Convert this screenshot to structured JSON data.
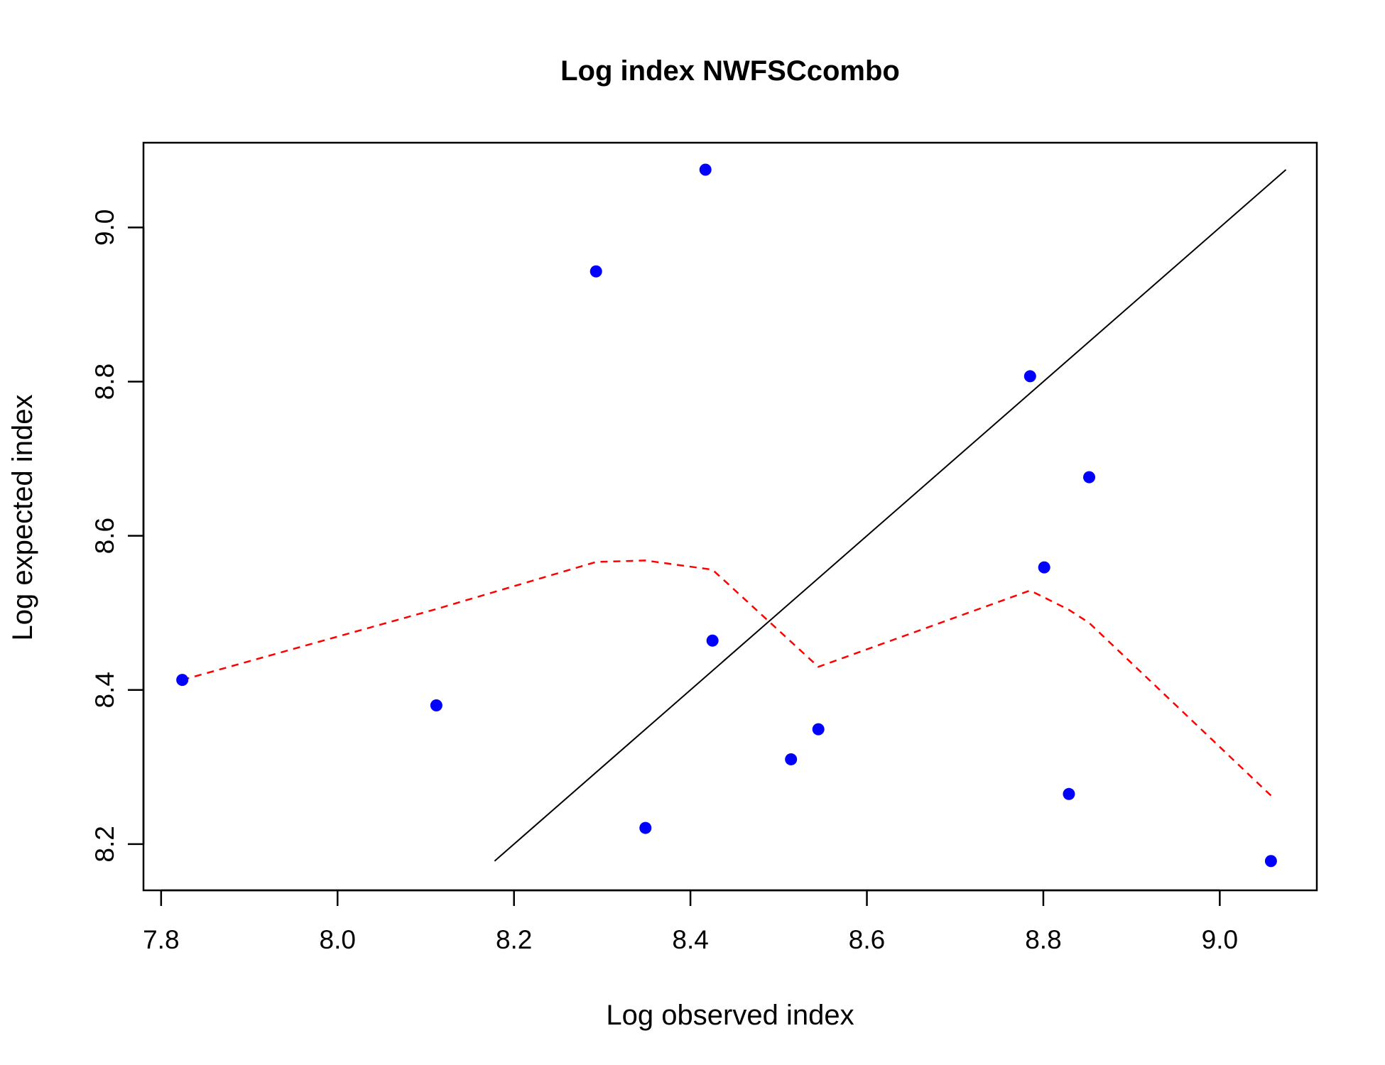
{
  "chart_data": {
    "type": "scatter",
    "title": "Log index NWFSCcombo",
    "xlabel": "Log observed index",
    "ylabel": "Log expected index",
    "xlim": [
      7.78,
      9.11
    ],
    "ylim": [
      8.14,
      9.11
    ],
    "x_ticks": [
      7.8,
      8.0,
      8.2,
      8.4,
      8.6,
      8.8,
      9.0
    ],
    "x_tick_labels": [
      "7.8",
      "8.0",
      "8.2",
      "8.4",
      "8.6",
      "8.8",
      "9.0"
    ],
    "y_ticks": [
      8.2,
      8.4,
      8.6,
      8.8,
      9.0
    ],
    "y_tick_labels": [
      "8.2",
      "8.4",
      "8.6",
      "8.8",
      "9.0"
    ],
    "grid": false,
    "points": {
      "color": "#0000ff",
      "x": [
        7.824,
        8.112,
        8.293,
        8.349,
        8.417,
        8.425,
        8.514,
        8.545,
        8.785,
        8.801,
        8.829,
        8.852,
        9.058
      ],
      "y": [
        8.413,
        8.38,
        8.943,
        8.221,
        9.075,
        8.464,
        8.31,
        8.349,
        8.807,
        8.559,
        8.265,
        8.676,
        8.178
      ]
    },
    "identity_line": {
      "color": "#000000",
      "x": [
        8.178,
        9.075
      ],
      "y": [
        8.178,
        9.075
      ]
    },
    "smooth_line": {
      "color": "#ff0000",
      "style": "dashed",
      "x": [
        7.824,
        8.112,
        8.293,
        8.349,
        8.425,
        8.545,
        8.785,
        8.801,
        8.829,
        8.852,
        9.058
      ],
      "y": [
        8.413,
        8.505,
        8.566,
        8.568,
        8.556,
        8.43,
        8.529,
        8.52,
        8.504,
        8.487,
        8.263
      ]
    }
  }
}
